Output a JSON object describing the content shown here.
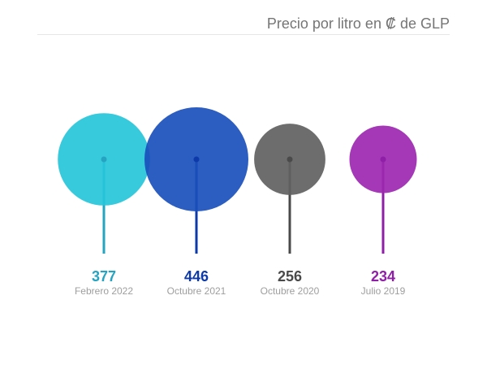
{
  "chart_data": {
    "type": "bubble",
    "title": "Precio por litro en ₡ de GLP",
    "xlabel": "",
    "ylabel": "",
    "categories": [
      "Febrero 2022",
      "Octubre 2021",
      "Octubre 2020",
      "Julio 2019"
    ],
    "values": [
      377,
      446,
      256,
      234
    ],
    "value_labels": [
      "377",
      "446",
      "256",
      "234"
    ],
    "colors": [
      "#26c6da",
      "#1a4fbb",
      "#616161",
      "#9c27b0"
    ],
    "stem_colors": [
      "#26a3c0",
      "#0d3aa8",
      "#4a4a4a",
      "#8e1fa6"
    ],
    "grid": false,
    "legend": "none"
  }
}
